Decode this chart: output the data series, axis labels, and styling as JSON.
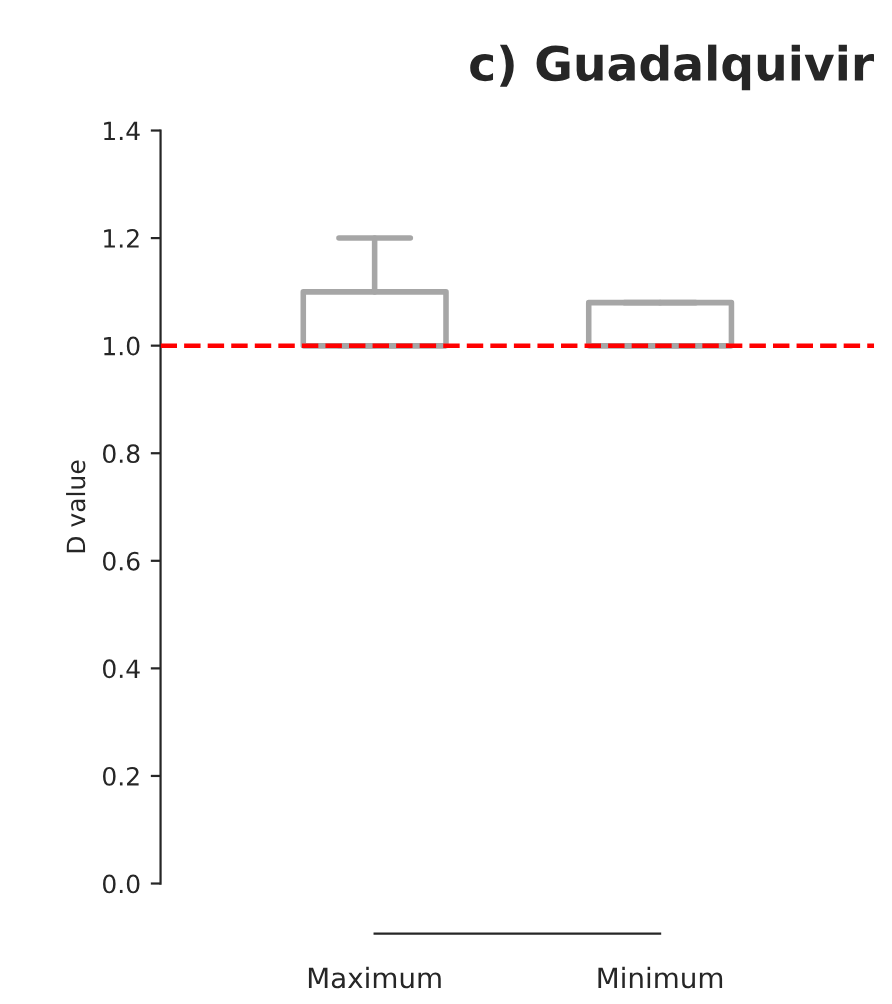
{
  "chart_data": {
    "type": "box",
    "title": "c) Guadalquivir",
    "ylabel": "D value",
    "categories": [
      "Maximum",
      "Minimum"
    ],
    "boxes": [
      {
        "low": 1.0,
        "q1": 1.0,
        "median": 1.0,
        "q3": 1.1,
        "high": 1.2
      },
      {
        "low": 1.0,
        "q1": 1.0,
        "median": 1.0,
        "q3": 1.08,
        "high": 1.08
      }
    ],
    "color": "#a6a6a6",
    "ylim": [
      0,
      1.4
    ],
    "yticks": [
      {
        "value": 0,
        "label": "0.0"
      },
      0.2,
      0.4,
      0.6,
      0.8,
      {
        "value": 1,
        "label": "1.0"
      },
      1.2,
      1.4
    ],
    "ref_lines": [
      {
        "axis": "y",
        "value": 1.0,
        "label": null,
        "color": "#ff0000",
        "line_style": "dashed"
      }
    ],
    "grid": false,
    "legend": false
  }
}
